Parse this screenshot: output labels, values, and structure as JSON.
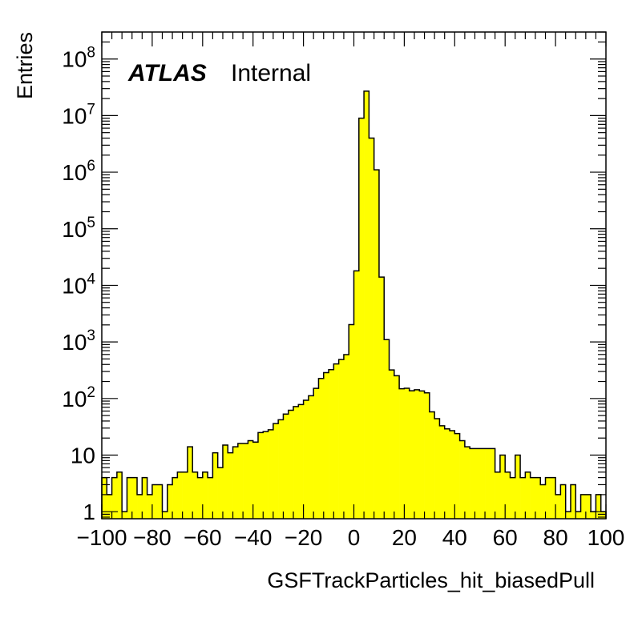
{
  "chart_data": {
    "type": "bar",
    "title": "",
    "xlabel": "GSFTrackParticles_hit_biasedPull",
    "ylabel": "Entries",
    "xlim": [
      -100,
      100
    ],
    "ylim": [
      0.75,
      300000000
    ],
    "yscale": "log",
    "bin_width": 2,
    "bar_color": "#ffff00",
    "outline_color": "#000000",
    "annotation": {
      "bold": "ATLAS",
      "normal": "Internal"
    },
    "x_ticks": [
      -100,
      -80,
      -60,
      -40,
      -20,
      0,
      20,
      40,
      60,
      80,
      100
    ],
    "x_tick_labels": [
      "−100",
      "−80",
      "−60",
      "−40",
      "−20",
      "0",
      "20",
      "40",
      "60",
      "80",
      "100"
    ],
    "y_ticks": [
      {
        "value": 1,
        "label": "1"
      },
      {
        "value": 10,
        "label": "10"
      },
      {
        "value": 100,
        "base": "10",
        "exp": "2"
      },
      {
        "value": 1000,
        "base": "10",
        "exp": "3"
      },
      {
        "value": 10000,
        "base": "10",
        "exp": "4"
      },
      {
        "value": 100000,
        "base": "10",
        "exp": "5"
      },
      {
        "value": 1000000,
        "base": "10",
        "exp": "6"
      },
      {
        "value": 10000000,
        "base": "10",
        "exp": "7"
      },
      {
        "value": 100000000,
        "base": "10",
        "exp": "8"
      }
    ],
    "series": [
      {
        "bin_edges_start": -100,
        "values": [
          4,
          2,
          4,
          5,
          1,
          4,
          4,
          2,
          4,
          2,
          3,
          3,
          1,
          3,
          4,
          5,
          5,
          14,
          5,
          4,
          5,
          4,
          11,
          6,
          15,
          11,
          14,
          16,
          16,
          18,
          17,
          25,
          26,
          28,
          36,
          42,
          53,
          62,
          72,
          78,
          93,
          112,
          151,
          226,
          287,
          324,
          408,
          488,
          596,
          2023,
          18000,
          9000000,
          27000000,
          4000000,
          1100000,
          14000,
          1100,
          320,
          253,
          149,
          152,
          137,
          143,
          136,
          126,
          58,
          44,
          33,
          29,
          27,
          24,
          18,
          14,
          13,
          13,
          13,
          13,
          13,
          5,
          10,
          5,
          4,
          10,
          4,
          5,
          4,
          4,
          3,
          4,
          4,
          2,
          3,
          1,
          3,
          1,
          2,
          2,
          1,
          2,
          1
        ]
      }
    ]
  }
}
